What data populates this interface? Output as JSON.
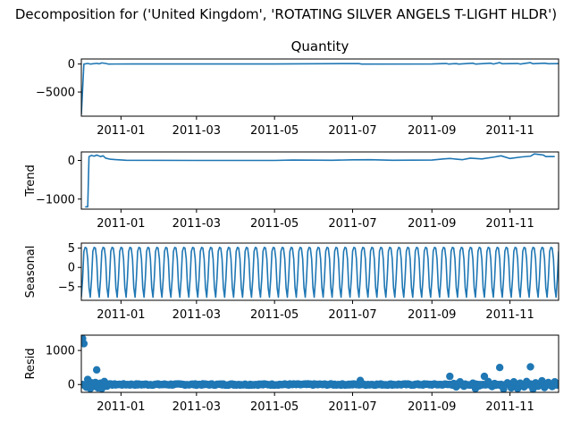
{
  "suptitle": "Decomposition for ('United Kingdom', 'ROTATING SILVER ANGELS T-LIGHT HLDR')",
  "colors": {
    "series": "#1f77b4"
  },
  "chart_data": [
    {
      "type": "line",
      "title": "Quantity",
      "ylabel": "",
      "xlim": [
        "2010-12-01",
        "2011-12-09"
      ],
      "ylim": [
        -9300,
        900
      ],
      "yticks": [
        0,
        -5000
      ],
      "xticks": [
        "2011-01",
        "2011-03",
        "2011-05",
        "2011-07",
        "2011-09",
        "2011-11"
      ],
      "points": [
        [
          "2010-12-01",
          -9000
        ],
        [
          "2010-12-03",
          0
        ],
        [
          "2010-12-06",
          100
        ],
        [
          "2010-12-08",
          0
        ],
        [
          "2010-12-13",
          120
        ],
        [
          "2010-12-15",
          40
        ],
        [
          "2010-12-17",
          200
        ],
        [
          "2010-12-20",
          100
        ],
        [
          "2010-12-22",
          0
        ],
        [
          "2011-01-10",
          20
        ],
        [
          "2011-03-01",
          10
        ],
        [
          "2011-05-01",
          20
        ],
        [
          "2011-07-06",
          80
        ],
        [
          "2011-07-08",
          0
        ],
        [
          "2011-09-01",
          20
        ],
        [
          "2011-09-12",
          100
        ],
        [
          "2011-09-14",
          0
        ],
        [
          "2011-09-20",
          80
        ],
        [
          "2011-09-22",
          0
        ],
        [
          "2011-10-03",
          150
        ],
        [
          "2011-10-05",
          0
        ],
        [
          "2011-10-17",
          150
        ],
        [
          "2011-10-19",
          0
        ],
        [
          "2011-10-24",
          250
        ],
        [
          "2011-10-26",
          50
        ],
        [
          "2011-11-07",
          100
        ],
        [
          "2011-11-09",
          0
        ],
        [
          "2011-11-17",
          250
        ],
        [
          "2011-11-19",
          50
        ],
        [
          "2011-11-28",
          150
        ],
        [
          "2011-12-01",
          50
        ],
        [
          "2011-12-09",
          80
        ]
      ]
    },
    {
      "type": "line",
      "title": "",
      "ylabel": "Trend",
      "xlim": [
        "2010-12-01",
        "2011-12-09"
      ],
      "ylim": [
        -1260,
        220
      ],
      "yticks": [
        0,
        -1000
      ],
      "xticks": [
        "2011-01",
        "2011-03",
        "2011-05",
        "2011-07",
        "2011-09",
        "2011-11"
      ],
      "points": [
        [
          "2010-12-04",
          -1200
        ],
        [
          "2010-12-06",
          -1200
        ],
        [
          "2010-12-07",
          100
        ],
        [
          "2010-12-09",
          130
        ],
        [
          "2010-12-11",
          110
        ],
        [
          "2010-12-13",
          140
        ],
        [
          "2010-12-16",
          100
        ],
        [
          "2010-12-18",
          120
        ],
        [
          "2010-12-20",
          60
        ],
        [
          "2010-12-24",
          30
        ],
        [
          "2011-01-05",
          5
        ],
        [
          "2011-03-01",
          0
        ],
        [
          "2011-05-01",
          0
        ],
        [
          "2011-05-15",
          10
        ],
        [
          "2011-06-15",
          5
        ],
        [
          "2011-07-01",
          15
        ],
        [
          "2011-07-15",
          20
        ],
        [
          "2011-08-01",
          5
        ],
        [
          "2011-09-01",
          10
        ],
        [
          "2011-09-10",
          40
        ],
        [
          "2011-09-15",
          50
        ],
        [
          "2011-09-25",
          20
        ],
        [
          "2011-10-01",
          60
        ],
        [
          "2011-10-10",
          40
        ],
        [
          "2011-10-20",
          90
        ],
        [
          "2011-10-25",
          120
        ],
        [
          "2011-11-01",
          50
        ],
        [
          "2011-11-10",
          90
        ],
        [
          "2011-11-17",
          110
        ],
        [
          "2011-11-20",
          170
        ],
        [
          "2011-11-27",
          140
        ],
        [
          "2011-11-29",
          100
        ],
        [
          "2011-12-06",
          100
        ]
      ]
    },
    {
      "type": "line",
      "title": "",
      "ylabel": "Seasonal",
      "xlim": [
        "2010-12-01",
        "2011-12-09"
      ],
      "ylim": [
        -8.5,
        6.3
      ],
      "yticks": [
        5,
        0,
        -5
      ],
      "xticks": [
        "2011-01",
        "2011-03",
        "2011-05",
        "2011-07",
        "2011-09",
        "2011-11"
      ],
      "period_days": 7,
      "weekly_pattern": [
        -7.7,
        -3.0,
        4.2,
        5.2,
        5.0,
        2.2,
        -5.2
      ]
    },
    {
      "type": "scatter",
      "title": "",
      "ylabel": "Resid",
      "xlim": [
        "2010-12-01",
        "2011-12-09"
      ],
      "ylim": [
        -230,
        1450
      ],
      "yticks": [
        1000,
        0
      ],
      "xticks": [
        "2011-01",
        "2011-03",
        "2011-05",
        "2011-07",
        "2011-09",
        "2011-11"
      ],
      "points": [
        [
          "2010-12-01",
          1250
        ],
        [
          "2010-12-02",
          1350
        ],
        [
          "2010-12-03",
          1200
        ],
        [
          "2010-12-05",
          -80
        ],
        [
          "2010-12-06",
          150
        ],
        [
          "2010-12-07",
          80
        ],
        [
          "2010-12-08",
          -120
        ],
        [
          "2010-12-09",
          50
        ],
        [
          "2010-12-10",
          -60
        ],
        [
          "2010-12-12",
          60
        ],
        [
          "2010-12-13",
          430
        ],
        [
          "2010-12-14",
          -100
        ],
        [
          "2010-12-15",
          -60
        ],
        [
          "2010-12-16",
          40
        ],
        [
          "2010-12-17",
          -120
        ],
        [
          "2010-12-19",
          90
        ],
        [
          "2010-12-20",
          30
        ],
        [
          "2010-12-21",
          -50
        ],
        [
          "2010-12-22",
          10
        ],
        [
          "2011-07-07",
          120
        ],
        [
          "2011-09-15",
          240
        ],
        [
          "2011-09-18",
          30
        ],
        [
          "2011-09-20",
          -70
        ],
        [
          "2011-09-23",
          80
        ],
        [
          "2011-09-26",
          -50
        ],
        [
          "2011-10-03",
          40
        ],
        [
          "2011-10-05",
          -120
        ],
        [
          "2011-10-08",
          -40
        ],
        [
          "2011-10-12",
          240
        ],
        [
          "2011-10-15",
          90
        ],
        [
          "2011-10-18",
          -60
        ],
        [
          "2011-10-20",
          30
        ],
        [
          "2011-10-24",
          500
        ],
        [
          "2011-10-27",
          -130
        ],
        [
          "2011-10-30",
          50
        ],
        [
          "2011-11-02",
          -100
        ],
        [
          "2011-11-04",
          80
        ],
        [
          "2011-11-07",
          -120
        ],
        [
          "2011-11-09",
          40
        ],
        [
          "2011-11-12",
          -70
        ],
        [
          "2011-11-14",
          90
        ],
        [
          "2011-11-17",
          520
        ],
        [
          "2011-11-19",
          -130
        ],
        [
          "2011-11-21",
          50
        ],
        [
          "2011-11-23",
          -50
        ],
        [
          "2011-11-26",
          110
        ],
        [
          "2011-11-28",
          -90
        ],
        [
          "2011-12-01",
          60
        ],
        [
          "2011-12-04",
          -60
        ],
        [
          "2011-12-06",
          80
        ],
        [
          "2011-12-08",
          20
        ]
      ],
      "baseline_noise": 20
    }
  ]
}
